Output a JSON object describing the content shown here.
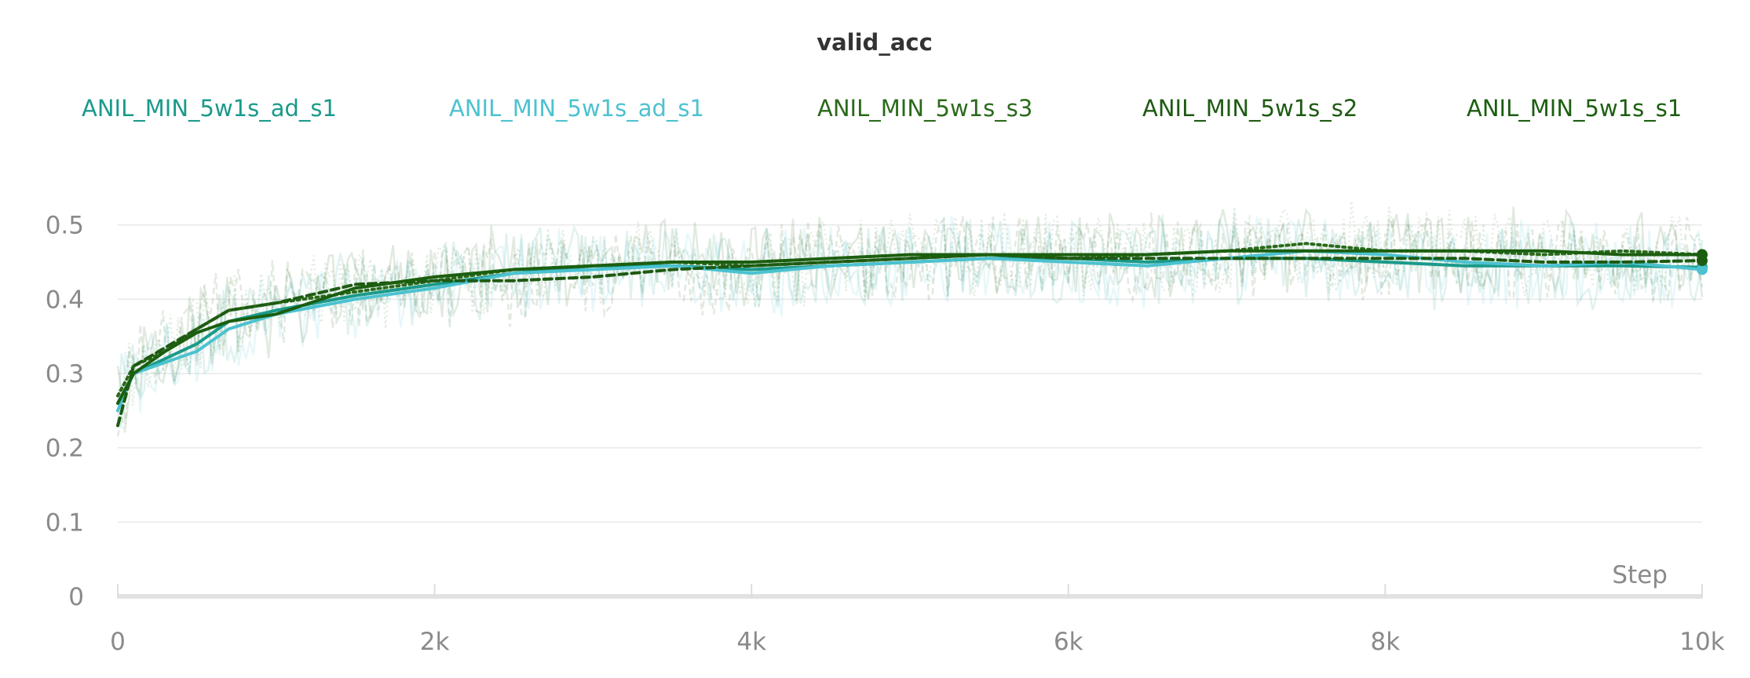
{
  "chart_data": {
    "type": "line",
    "title": "valid_acc",
    "xlabel": "Step",
    "ylabel": "",
    "xlim": [
      0,
      10000
    ],
    "ylim": [
      0,
      0.6
    ],
    "grid": true,
    "legend_position": "top",
    "x_ticks": [
      {
        "value": 0,
        "label": "0"
      },
      {
        "value": 2000,
        "label": "2k"
      },
      {
        "value": 4000,
        "label": "4k"
      },
      {
        "value": 6000,
        "label": "6k"
      },
      {
        "value": 8000,
        "label": "8k"
      },
      {
        "value": 10000,
        "label": "10k"
      }
    ],
    "y_ticks": [
      {
        "value": 0,
        "label": "0"
      },
      {
        "value": 0.1,
        "label": "0.1"
      },
      {
        "value": 0.2,
        "label": "0.2"
      },
      {
        "value": 0.3,
        "label": "0.3"
      },
      {
        "value": 0.4,
        "label": "0.4"
      },
      {
        "value": 0.5,
        "label": "0.5"
      }
    ],
    "series": [
      {
        "name": "ANIL_MIN_5w1s_ad_s1",
        "color": "#1a9a8a",
        "dash": "solid",
        "x": [
          0,
          100,
          300,
          500,
          700,
          1000,
          1500,
          2000,
          2500,
          3000,
          3500,
          4000,
          4500,
          5000,
          5500,
          6000,
          6500,
          7000,
          7500,
          8000,
          8500,
          9000,
          9500,
          10000
        ],
        "y": [
          0.26,
          0.3,
          0.32,
          0.34,
          0.37,
          0.385,
          0.405,
          0.42,
          0.435,
          0.445,
          0.445,
          0.44,
          0.445,
          0.45,
          0.455,
          0.455,
          0.45,
          0.455,
          0.455,
          0.45,
          0.445,
          0.445,
          0.445,
          0.443
        ]
      },
      {
        "name": "ANIL_MIN_5w1s_ad_s1",
        "color": "#4cc2d0",
        "dash": "solid",
        "x": [
          0,
          100,
          300,
          500,
          700,
          1000,
          1500,
          2000,
          2500,
          3000,
          3500,
          4000,
          4500,
          5000,
          5500,
          6000,
          6500,
          7000,
          7500,
          8000,
          8500,
          9000,
          9500,
          10000
        ],
        "y": [
          0.25,
          0.3,
          0.315,
          0.33,
          0.36,
          0.38,
          0.4,
          0.415,
          0.435,
          0.44,
          0.445,
          0.435,
          0.445,
          0.45,
          0.455,
          0.45,
          0.445,
          0.455,
          0.465,
          0.46,
          0.45,
          0.445,
          0.45,
          0.44
        ]
      },
      {
        "name": "ANIL_MIN_5w1s_s3",
        "color": "#2a6a1a",
        "dash": "dotted",
        "x": [
          0,
          100,
          300,
          500,
          700,
          1000,
          1500,
          2000,
          2500,
          3000,
          3500,
          4000,
          4500,
          5000,
          5500,
          6000,
          6500,
          7000,
          7500,
          8000,
          8500,
          9000,
          9500,
          10000
        ],
        "y": [
          0.27,
          0.31,
          0.33,
          0.36,
          0.385,
          0.395,
          0.41,
          0.425,
          0.44,
          0.445,
          0.45,
          0.445,
          0.45,
          0.455,
          0.46,
          0.455,
          0.46,
          0.465,
          0.475,
          0.465,
          0.465,
          0.46,
          0.465,
          0.46
        ]
      },
      {
        "name": "ANIL_MIN_5w1s_s2",
        "color": "#1e5a12",
        "dash": "dashed",
        "x": [
          0,
          100,
          300,
          500,
          700,
          1000,
          1500,
          2000,
          2500,
          3000,
          3500,
          4000,
          4500,
          5000,
          5500,
          6000,
          6500,
          7000,
          7500,
          8000,
          8500,
          9000,
          9500,
          10000
        ],
        "y": [
          0.23,
          0.31,
          0.335,
          0.36,
          0.385,
          0.395,
          0.42,
          0.425,
          0.425,
          0.43,
          0.44,
          0.445,
          0.45,
          0.455,
          0.46,
          0.455,
          0.455,
          0.455,
          0.455,
          0.455,
          0.455,
          0.45,
          0.45,
          0.452
        ]
      },
      {
        "name": "ANIL_MIN_5w1s_s1",
        "color": "#1b5e0f",
        "dash": "solid",
        "x": [
          0,
          100,
          300,
          500,
          700,
          1000,
          1500,
          2000,
          2500,
          3000,
          3500,
          4000,
          4500,
          5000,
          5500,
          6000,
          6500,
          7000,
          7500,
          8000,
          8500,
          9000,
          9500,
          10000
        ],
        "y": [
          0.26,
          0.3,
          0.33,
          0.355,
          0.37,
          0.38,
          0.415,
          0.43,
          0.44,
          0.445,
          0.45,
          0.45,
          0.455,
          0.46,
          0.46,
          0.46,
          0.46,
          0.465,
          0.465,
          0.465,
          0.465,
          0.465,
          0.46,
          0.46
        ]
      }
    ]
  }
}
